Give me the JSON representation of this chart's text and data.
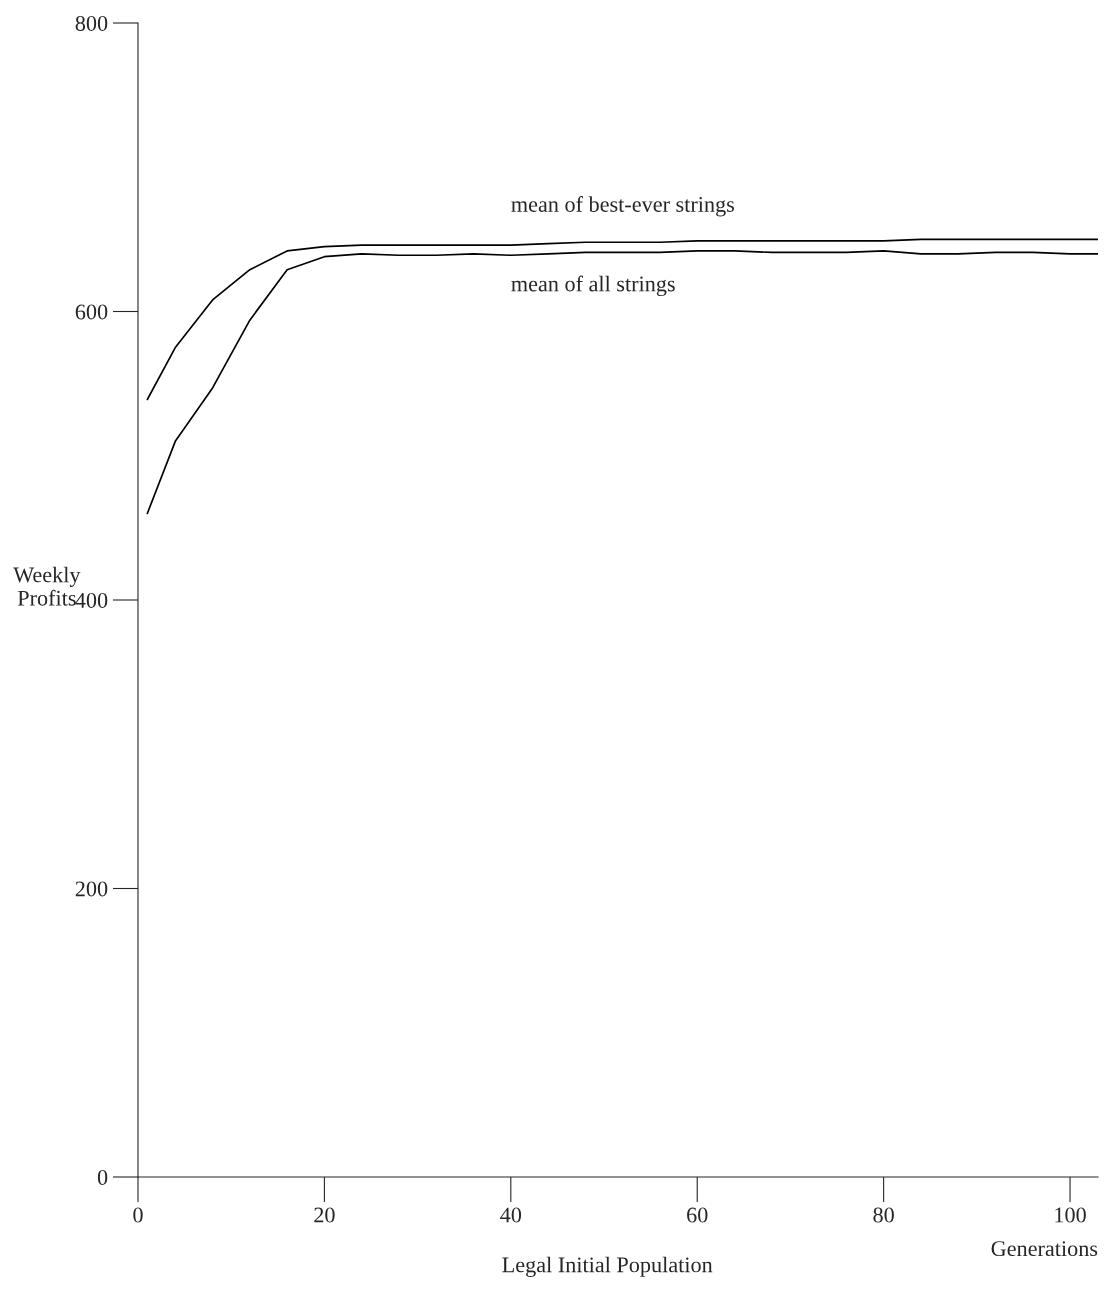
{
  "chart_data": {
    "type": "line",
    "xlabel": "Generations",
    "ylabel": "Weekly\nProfits",
    "annotations": [
      "Legal Initial Population"
    ],
    "x": [
      1,
      4,
      8,
      12,
      16,
      20,
      24,
      28,
      32,
      36,
      40,
      44,
      48,
      52,
      56,
      60,
      64,
      68,
      72,
      76,
      80,
      84,
      88,
      92,
      96,
      100,
      103
    ],
    "series": [
      {
        "name": "mean of best-ever strings",
        "color": "#000000",
        "values": [
          539,
          575,
          608,
          629,
          642,
          645,
          646,
          646,
          646,
          646,
          646,
          647,
          648,
          648,
          648,
          649,
          649,
          649,
          649,
          649,
          649,
          650,
          650,
          650,
          650,
          650,
          650
        ]
      },
      {
        "name": "mean of all strings",
        "color": "#000000",
        "values": [
          460,
          510,
          547,
          594,
          629,
          638,
          640,
          639,
          639,
          640,
          639,
          640,
          641,
          641,
          641,
          642,
          642,
          641,
          641,
          641,
          642,
          640,
          640,
          641,
          641,
          640,
          640
        ]
      }
    ],
    "xlim": [
      0,
      103
    ],
    "xticks": [
      0,
      20,
      40,
      60,
      80,
      100
    ],
    "ylim": [
      0,
      800
    ],
    "yticks": [
      0,
      200,
      400,
      600,
      800
    ],
    "grid": false,
    "marker": "none",
    "line_style": "solid"
  }
}
